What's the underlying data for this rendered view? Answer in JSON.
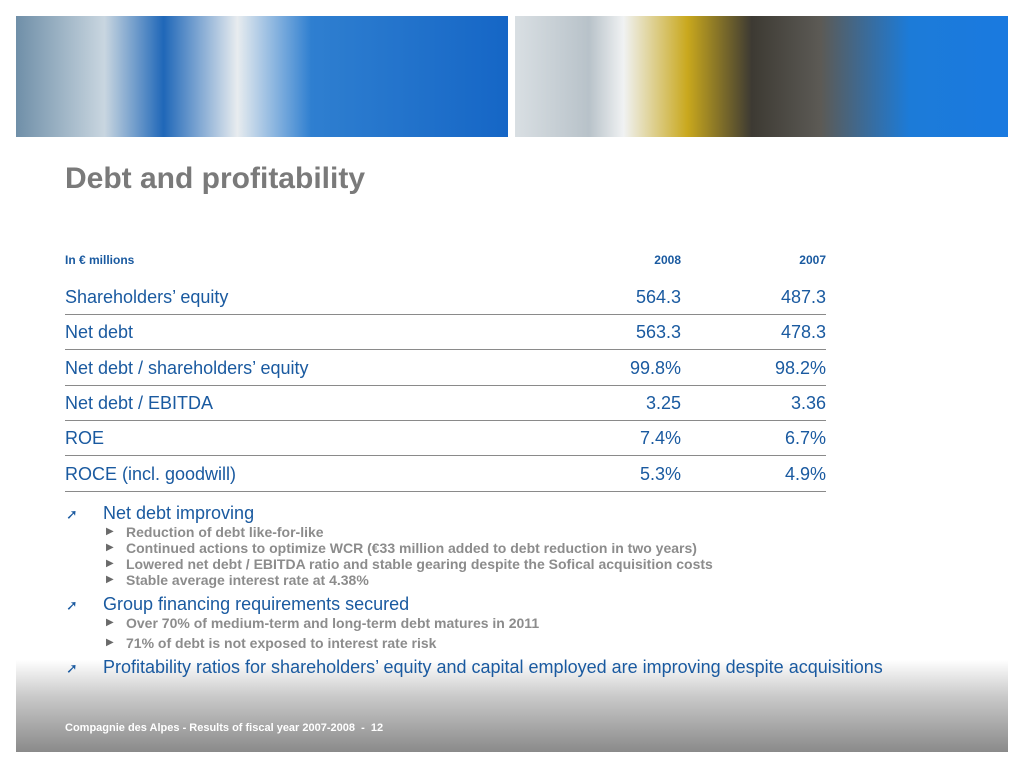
{
  "header": {
    "title": "Debt and profitability"
  },
  "table": {
    "columns": [
      "In € millions",
      "2008",
      "2007"
    ],
    "rows": [
      [
        "Shareholders’ equity",
        "564.3",
        "487.3"
      ],
      [
        "Net debt",
        "563.3",
        "478.3"
      ],
      [
        "Net debt / shareholders’ equity",
        "99.8%",
        "98.2%"
      ],
      [
        "Net debt / EBITDA",
        "3.25",
        "3.36"
      ],
      [
        "ROE",
        "7.4%",
        "6.7%"
      ],
      [
        "ROCE (incl. goodwill)",
        "5.3%",
        "4.9%"
      ]
    ]
  },
  "bullets": [
    {
      "text": "Net debt improving",
      "items": [
        "Reduction of debt like-for-like",
        "Continued actions to optimize WCR (€33 million added to debt reduction in two years)",
        "Lowered net debt / EBITDA ratio and stable gearing despite the Sofical acquisition costs",
        "Stable average interest rate at 4.38%"
      ]
    },
    {
      "text": "Group financing requirements secured",
      "items": [
        "Over 70% of medium-term and long-term debt matures in 2011",
        "71% of debt is not exposed to interest rate risk"
      ]
    },
    {
      "text": "Profitability ratios for shareholders’ equity and capital employed are improving despite acquisitions",
      "items": []
    }
  ],
  "footer": {
    "text": "Compagnie des Alpes - Results of fiscal year 2007-2008  -  12"
  }
}
